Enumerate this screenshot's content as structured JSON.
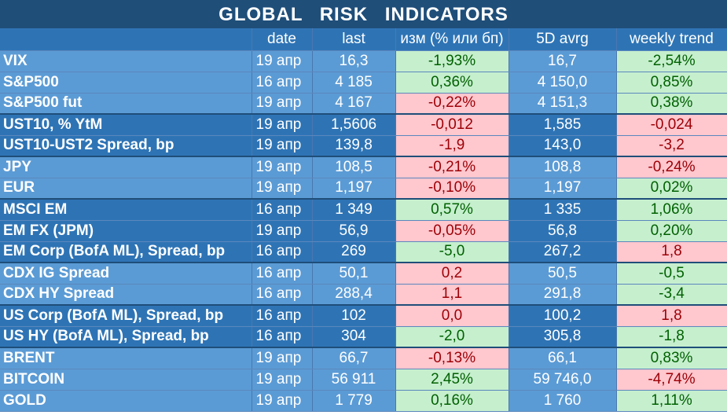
{
  "title": "GLOBAL   RISK   INDICATORS",
  "columns": [
    "",
    "date",
    "last",
    "изм (% или бп)",
    "5D avrg",
    "weekly trend"
  ],
  "rows": [
    {
      "name": "VIX",
      "date": "19 апр",
      "last": "16,3",
      "chg": "-1,93%",
      "chg_dir": "up",
      "avg": "16,7",
      "trend": "-2,54%",
      "trend_dir": "up",
      "group": 0,
      "group_start": true
    },
    {
      "name": "S&P500",
      "date": "16 апр",
      "last": "4 185",
      "chg": "0,36%",
      "chg_dir": "up",
      "avg": "4 150,0",
      "trend": "0,85%",
      "trend_dir": "up",
      "group": 0,
      "group_start": false
    },
    {
      "name": "S&P500 fut",
      "date": "19 апр",
      "last": "4 167",
      "chg": "-0,22%",
      "chg_dir": "down",
      "avg": "4 151,3",
      "trend": "0,38%",
      "trend_dir": "up",
      "group": 0,
      "group_start": false
    },
    {
      "name": "UST10, % YtM",
      "date": "19 апр",
      "last": "1,5606",
      "chg": "-0,012",
      "chg_dir": "down",
      "avg": "1,585",
      "trend": "-0,024",
      "trend_dir": "down",
      "group": 1,
      "group_start": true
    },
    {
      "name": "UST10-UST2 Spread, bp",
      "date": "19 апр",
      "last": "139,8",
      "chg": "-1,9",
      "chg_dir": "down",
      "avg": "143,0",
      "trend": "-3,2",
      "trend_dir": "down",
      "group": 1,
      "group_start": false
    },
    {
      "name": "JPY",
      "date": "19 апр",
      "last": "108,5",
      "chg": "-0,21%",
      "chg_dir": "down",
      "avg": "108,8",
      "trend": "-0,24%",
      "trend_dir": "down",
      "group": 0,
      "group_start": true
    },
    {
      "name": "EUR",
      "date": "19 апр",
      "last": "1,197",
      "chg": "-0,10%",
      "chg_dir": "down",
      "avg": "1,197",
      "trend": "0,02%",
      "trend_dir": "up",
      "group": 0,
      "group_start": false
    },
    {
      "name": "MSCI EM",
      "date": "16 апр",
      "last": "1 349",
      "chg": "0,57%",
      "chg_dir": "up",
      "avg": "1 335",
      "trend": "1,06%",
      "trend_dir": "up",
      "group": 1,
      "group_start": true
    },
    {
      "name": "EM FX (JPM)",
      "date": "19 апр",
      "last": "56,9",
      "chg": "-0,05%",
      "chg_dir": "down",
      "avg": "56,8",
      "trend": "0,20%",
      "trend_dir": "up",
      "group": 1,
      "group_start": false
    },
    {
      "name": "EM Corp (BofA ML), Spread, bp",
      "date": "16 апр",
      "last": "269",
      "chg": "-5,0",
      "chg_dir": "up",
      "avg": "267,2",
      "trend": "1,8",
      "trend_dir": "down",
      "group": 1,
      "group_start": false
    },
    {
      "name": "CDX IG Spread",
      "date": "16 апр",
      "last": "50,1",
      "chg": "0,2",
      "chg_dir": "down",
      "avg": "50,5",
      "trend": "-0,5",
      "trend_dir": "up",
      "group": 0,
      "group_start": true
    },
    {
      "name": "CDX HY Spread",
      "date": "16 апр",
      "last": "288,4",
      "chg": "1,1",
      "chg_dir": "down",
      "avg": "291,8",
      "trend": "-3,4",
      "trend_dir": "up",
      "group": 0,
      "group_start": false
    },
    {
      "name": "US Corp (BofA ML), Spread, bp",
      "date": "16 апр",
      "last": "102",
      "chg": "0,0",
      "chg_dir": "down",
      "avg": "100,2",
      "trend": "1,8",
      "trend_dir": "down",
      "group": 1,
      "group_start": true
    },
    {
      "name": "US HY (BofA ML), Spread, bp",
      "date": "16 апр",
      "last": "304",
      "chg": "-2,0",
      "chg_dir": "up",
      "avg": "305,8",
      "trend": "-1,8",
      "trend_dir": "up",
      "group": 1,
      "group_start": false
    },
    {
      "name": "BRENT",
      "date": "19 апр",
      "last": "66,7",
      "chg": "-0,13%",
      "chg_dir": "down",
      "avg": "66,1",
      "trend": "0,83%",
      "trend_dir": "up",
      "group": 0,
      "group_start": true
    },
    {
      "name": "BITCOIN",
      "date": "19 апр",
      "last": "56 911",
      "chg": "2,45%",
      "chg_dir": "up",
      "avg": "59 746,0",
      "trend": "-4,74%",
      "trend_dir": "down",
      "group": 0,
      "group_start": false
    },
    {
      "name": "GOLD",
      "date": "19 апр",
      "last": "1 779",
      "chg": "0,16%",
      "chg_dir": "up",
      "avg": "1 760",
      "trend": "1,11%",
      "trend_dir": "up",
      "group": 0,
      "group_start": false
    }
  ]
}
